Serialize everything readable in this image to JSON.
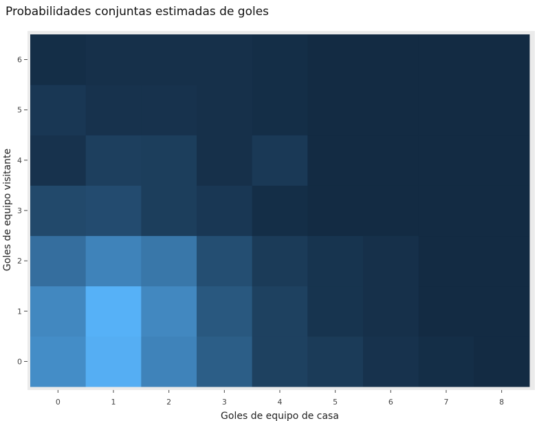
{
  "chart_data": {
    "type": "heatmap",
    "title": "Probabilidades conjuntas estimadas de goles",
    "xlabel": "Goles de equipo de casa",
    "ylabel": "Goles de equipo visitante",
    "x": [
      0,
      1,
      2,
      3,
      4,
      5,
      6,
      7,
      8
    ],
    "y": [
      0,
      1,
      2,
      3,
      4,
      5,
      6
    ],
    "xlim": [
      -0.5,
      8.5
    ],
    "ylim": [
      -0.5,
      6.5
    ],
    "grid": true,
    "colors": {
      "low": "#132B43",
      "high": "#56B1F7",
      "panel": "#EBEBEB"
    },
    "z": [
      [
        0.08,
        0.115,
        0.07,
        0.035,
        0.012,
        0.008,
        0.003,
        0.001,
        0.0
      ],
      [
        0.075,
        0.118,
        0.075,
        0.03,
        0.012,
        0.004,
        0.002,
        0.0,
        0.0
      ],
      [
        0.05,
        0.07,
        0.058,
        0.022,
        0.008,
        0.004,
        0.002,
        0.0,
        0.0
      ],
      [
        0.018,
        0.02,
        0.01,
        0.006,
        0.001,
        0.0,
        0.0,
        0.0,
        0.0
      ],
      [
        0.003,
        0.011,
        0.01,
        0.002,
        0.007,
        0.0,
        0.0,
        0.0,
        0.0
      ],
      [
        0.006,
        0.003,
        0.003,
        0.002,
        0.001,
        0.0,
        0.0,
        0.0,
        0.0
      ],
      [
        0.001,
        0.002,
        0.002,
        0.002,
        0.001,
        0.0,
        0.0,
        0.0,
        0.0
      ]
    ]
  }
}
